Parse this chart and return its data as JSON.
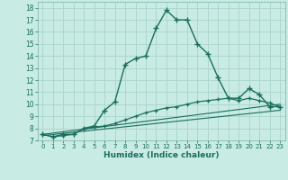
{
  "title": "",
  "xlabel": "Humidex (Indice chaleur)",
  "background_color": "#c8ebe3",
  "grid_color": "#aad4cc",
  "line_color": "#1a6e5e",
  "xlim": [
    -0.5,
    23.5
  ],
  "ylim": [
    7,
    18.5
  ],
  "xticks": [
    0,
    1,
    2,
    3,
    4,
    5,
    6,
    7,
    8,
    9,
    10,
    11,
    12,
    13,
    14,
    15,
    16,
    17,
    18,
    19,
    20,
    21,
    22,
    23
  ],
  "yticks": [
    7,
    8,
    9,
    10,
    11,
    12,
    13,
    14,
    15,
    16,
    17,
    18
  ],
  "line1_x": [
    0,
    1,
    2,
    3,
    4,
    5,
    6,
    7,
    8,
    9,
    10,
    11,
    12,
    13,
    14,
    15,
    16,
    17,
    18,
    19,
    20,
    21,
    22,
    23
  ],
  "line1_y": [
    7.5,
    7.3,
    7.5,
    7.5,
    8.0,
    8.2,
    9.5,
    10.2,
    13.3,
    13.8,
    14.0,
    16.3,
    17.8,
    17.0,
    17.0,
    15.0,
    14.2,
    12.2,
    10.5,
    10.5,
    11.3,
    10.8,
    9.8,
    9.8
  ],
  "line2_x": [
    0,
    1,
    2,
    3,
    4,
    5,
    6,
    7,
    8,
    9,
    10,
    11,
    12,
    13,
    14,
    15,
    16,
    17,
    18,
    19,
    20,
    21,
    22,
    23
  ],
  "line2_y": [
    7.5,
    7.3,
    7.4,
    7.5,
    8.0,
    8.1,
    8.2,
    8.4,
    8.7,
    9.0,
    9.3,
    9.5,
    9.7,
    9.8,
    10.0,
    10.2,
    10.3,
    10.4,
    10.5,
    10.3,
    10.5,
    10.3,
    10.1,
    9.8
  ],
  "line3_x": [
    0,
    23
  ],
  "line3_y": [
    7.5,
    10.0
  ],
  "line4_x": [
    0,
    23
  ],
  "line4_y": [
    7.4,
    9.5
  ]
}
